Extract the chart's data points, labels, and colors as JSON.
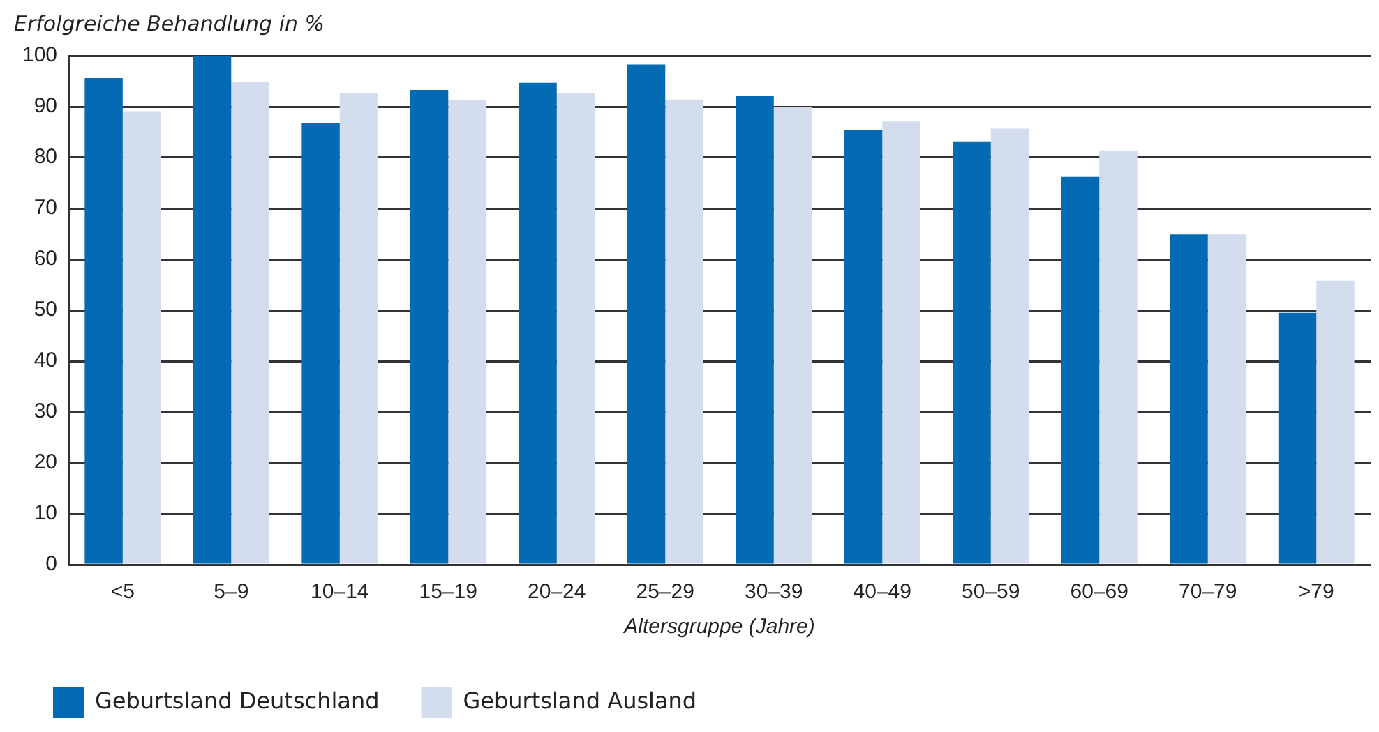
{
  "chart_data": {
    "type": "bar",
    "ylabel": "Erfolgreiche Behandlung in %",
    "xlabel": "Altersgruppe (Jahre)",
    "categories": [
      "<5",
      "5–9",
      "10–14",
      "15–19",
      "20–24",
      "25–29",
      "30–39",
      "40–49",
      "50–59",
      "60–69",
      "70–79",
      ">79"
    ],
    "series": [
      {
        "name": "Geburtsland Deutschland",
        "color": "#036ab3",
        "values": [
          95.6,
          100,
          86.8,
          93.3,
          94.7,
          98.3,
          92.2,
          85.4,
          83.2,
          76.2,
          64.9,
          49.5
        ]
      },
      {
        "name": "Geburtsland Ausland",
        "color": "#d4ddee",
        "values": [
          89.1,
          94.9,
          92.7,
          91.3,
          92.6,
          91.4,
          90.0,
          87.1,
          85.7,
          81.4,
          64.9,
          55.8
        ]
      }
    ],
    "ylim": [
      0,
      100
    ],
    "yticks": [
      0,
      10,
      20,
      30,
      40,
      50,
      60,
      70,
      80,
      90,
      100
    ],
    "grid": "y",
    "legend": "bottom left"
  }
}
